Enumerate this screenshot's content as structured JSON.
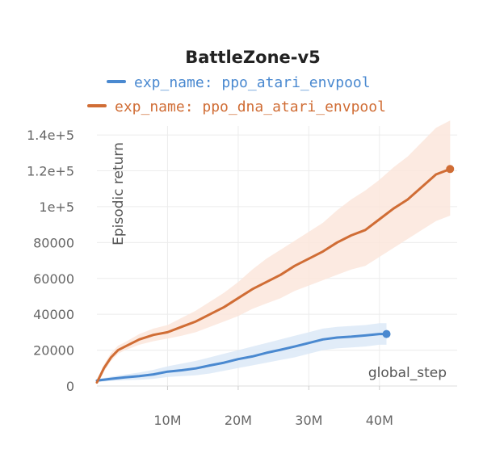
{
  "chart_data": {
    "type": "line",
    "title": "BattleZone-v5",
    "xlabel": "global_step",
    "ylabel": "Episodic return",
    "x_ticks": [
      "10M",
      "20M",
      "30M",
      "40M"
    ],
    "y_ticks": [
      "0",
      "20000",
      "40000",
      "60000",
      "80000",
      "1e+5",
      "1.2e+5",
      "1.4e+5"
    ],
    "x_tick_values": [
      10000000,
      20000000,
      30000000,
      40000000
    ],
    "y_tick_values": [
      0,
      20000,
      40000,
      60000,
      80000,
      100000,
      120000,
      140000
    ],
    "xlim": [
      0,
      51000000
    ],
    "ylim": [
      0,
      145000
    ],
    "grid": true,
    "legend_position": "top",
    "series": [
      {
        "name": "exp_name: ppo_atari_envpool",
        "color": "#4a89d0",
        "band_color": "#dce9f7",
        "x": [
          0,
          1000000,
          2000000,
          4000000,
          6000000,
          8000000,
          10000000,
          12000000,
          14000000,
          16000000,
          18000000,
          20000000,
          22000000,
          24000000,
          26000000,
          28000000,
          30000000,
          32000000,
          34000000,
          36000000,
          38000000,
          40000000,
          41000000
        ],
        "values": [
          3000,
          3500,
          4000,
          4800,
          5500,
          6500,
          8000,
          8800,
          9800,
          11500,
          13000,
          15000,
          16500,
          18500,
          20200,
          22000,
          24000,
          26000,
          27000,
          27500,
          28200,
          29000,
          29000
        ],
        "lower": [
          2000,
          2500,
          2800,
          3200,
          3500,
          4000,
          5000,
          5500,
          6000,
          7000,
          8500,
          10000,
          11500,
          13000,
          14500,
          16000,
          18000,
          20000,
          21000,
          21500,
          22000,
          23000,
          23000
        ],
        "upper": [
          4000,
          4500,
          5200,
          6400,
          7500,
          9000,
          11000,
          12500,
          14000,
          16000,
          18000,
          20000,
          22000,
          24000,
          26000,
          28000,
          30000,
          32000,
          33000,
          33500,
          34000,
          35000,
          35000
        ]
      },
      {
        "name": "exp_name: ppo_dna_atari_envpool",
        "color": "#d06d35",
        "band_color": "#fbe6dc",
        "x": [
          0,
          500000,
          1000000,
          2000000,
          3000000,
          4000000,
          6000000,
          8000000,
          10000000,
          12000000,
          14000000,
          16000000,
          18000000,
          20000000,
          22000000,
          24000000,
          26000000,
          28000000,
          30000000,
          32000000,
          34000000,
          36000000,
          38000000,
          40000000,
          42000000,
          44000000,
          46000000,
          48000000,
          50000000
        ],
        "values": [
          2000,
          6000,
          10000,
          16000,
          20000,
          22000,
          26000,
          28500,
          30000,
          33000,
          36000,
          40000,
          44000,
          49000,
          54000,
          58000,
          62000,
          67000,
          71000,
          75000,
          80000,
          84000,
          87000,
          93000,
          99000,
          104000,
          111000,
          118000,
          121000
        ],
        "lower": [
          1000,
          4500,
          8000,
          14000,
          18000,
          20000,
          23000,
          25000,
          26500,
          28000,
          30000,
          33000,
          36000,
          39000,
          43000,
          46000,
          49000,
          53000,
          56000,
          59000,
          62000,
          65000,
          67000,
          72000,
          77000,
          82000,
          87000,
          92000,
          95000
        ],
        "upper": [
          3000,
          7500,
          12000,
          18500,
          22500,
          24500,
          29000,
          32000,
          34000,
          38000,
          42000,
          47000,
          52000,
          58000,
          65000,
          71000,
          76000,
          81000,
          86000,
          91000,
          98000,
          104000,
          109000,
          115000,
          122000,
          128000,
          136000,
          144000,
          148000
        ]
      }
    ]
  }
}
